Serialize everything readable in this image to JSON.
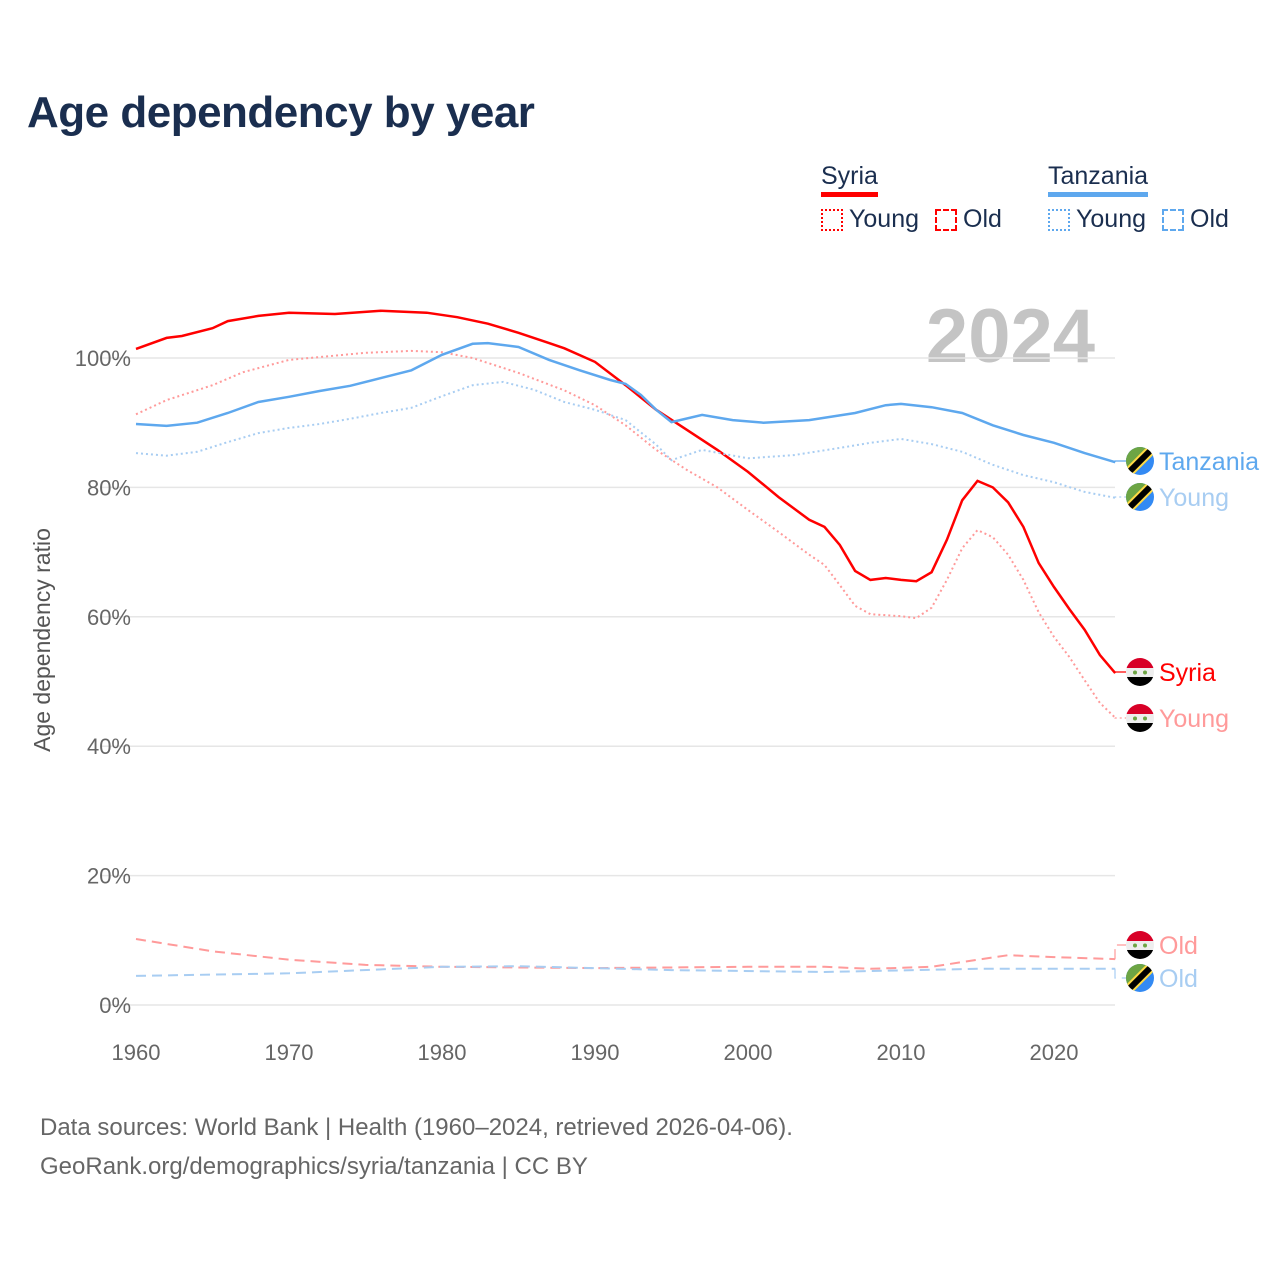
{
  "title": "Age dependency by year",
  "legend": {
    "groups": [
      {
        "name": "Syria",
        "color": "#ff0000",
        "light": "#ff9a9a",
        "young": "Young",
        "old": "Old"
      },
      {
        "name": "Tanzania",
        "color": "#5ea8ee",
        "light": "#a8cdf2",
        "young": "Young",
        "old": "Old"
      }
    ]
  },
  "year_watermark": "2024",
  "footer": {
    "line1": "Data sources: World Bank | Health (1960–2024, retrieved 2026-04-06).",
    "line2": "GeoRank.org/demographics/syria/tanzania | CC BY"
  },
  "chart_data": {
    "type": "line",
    "title": "Age dependency by year",
    "xlabel": "",
    "ylabel": "Age dependency ratio",
    "xlim": [
      1960,
      2024
    ],
    "ylim": [
      0,
      110
    ],
    "x_ticks": [
      "1960",
      "1970",
      "1980",
      "1990",
      "2000",
      "2010",
      "2020"
    ],
    "y_ticks": [
      "0%",
      "20%",
      "40%",
      "60%",
      "80%",
      "100%"
    ],
    "grid": true,
    "legend_position": "top-right",
    "series": [
      {
        "name": "Syria",
        "end_label": "Syria",
        "style": "solid",
        "color": "#ff0000",
        "x": [
          1960,
          1962,
          1963,
          1965,
          1966,
          1968,
          1970,
          1973,
          1976,
          1979,
          1981,
          1983,
          1985,
          1987,
          1988,
          1990,
          1992,
          1994,
          1996,
          1998,
          2000,
          2002,
          2004,
          2005,
          2006,
          2007,
          2008,
          2009,
          2010,
          2011,
          2012,
          2013,
          2014,
          2015,
          2016,
          2017,
          2018,
          2019,
          2020,
          2021,
          2022,
          2023,
          2024
        ],
        "values": [
          101.4,
          103.1,
          103.4,
          104.6,
          105.7,
          106.5,
          107,
          106.8,
          107.3,
          107,
          106.3,
          105.3,
          103.9,
          102.3,
          101.5,
          99.4,
          95.8,
          92,
          88.9,
          85.8,
          82.4,
          78.5,
          75,
          73.9,
          71.1,
          67.1,
          65.7,
          66,
          65.7,
          65.5,
          66.9,
          71.9,
          78,
          81,
          80,
          77.7,
          73.9,
          68.3,
          64.6,
          61.2,
          58,
          54.1,
          51.3
        ]
      },
      {
        "name": "Syria Young",
        "end_label": "Young",
        "style": "dotted",
        "color": "#ff9a9a",
        "x": [
          1960,
          1962,
          1965,
          1967,
          1970,
          1975,
          1978,
          1980,
          1982,
          1985,
          1988,
          1990,
          1992,
          1994,
          1996,
          1998,
          2000,
          2002,
          2004,
          2005,
          2006,
          2007,
          2008,
          2010,
          2011,
          2012,
          2013,
          2014,
          2015,
          2016,
          2017,
          2018,
          2019,
          2020,
          2021,
          2022,
          2023,
          2024
        ],
        "values": [
          91.3,
          93.5,
          95.8,
          97.8,
          99.7,
          100.8,
          101.1,
          100.9,
          100,
          97.7,
          95,
          92.7,
          89.6,
          85.8,
          82.7,
          80,
          76.5,
          73.1,
          69.6,
          68,
          64.9,
          61.7,
          60.4,
          60.1,
          59.8,
          61.4,
          65.7,
          70.6,
          73.4,
          72.3,
          69.6,
          65.7,
          60.7,
          56.9,
          53.8,
          50.2,
          46.7,
          44.4
        ]
      },
      {
        "name": "Syria Old",
        "end_label": "Old",
        "style": "dashed",
        "color": "#ff9a9a",
        "x": [
          1960,
          1965,
          1970,
          1975,
          1980,
          1990,
          2000,
          2005,
          2008,
          2012,
          2015,
          2017,
          2020,
          2024
        ],
        "values": [
          10.2,
          8.3,
          7,
          6.2,
          5.9,
          5.7,
          5.9,
          5.9,
          5.6,
          5.9,
          7,
          7.7,
          7.4,
          7.1
        ]
      },
      {
        "name": "Tanzania",
        "end_label": "Tanzania",
        "style": "solid",
        "color": "#5ea8ee",
        "x": [
          1960,
          1962,
          1964,
          1966,
          1968,
          1970,
          1972,
          1974,
          1976,
          1978,
          1980,
          1982,
          1983,
          1985,
          1987,
          1989,
          1991,
          1992,
          1993,
          1994,
          1995,
          1997,
          1999,
          2001,
          2004,
          2007,
          2009,
          2010,
          2012,
          2014,
          2016,
          2018,
          2020,
          2022,
          2024
        ],
        "values": [
          89.8,
          89.5,
          90,
          91.5,
          93.2,
          94,
          94.9,
          95.7,
          96.9,
          98.1,
          100.5,
          102.2,
          102.3,
          101.7,
          99.7,
          98.1,
          96.6,
          96,
          94.3,
          92,
          90.1,
          91.2,
          90.4,
          90,
          90.4,
          91.5,
          92.7,
          92.9,
          92.4,
          91.5,
          89.6,
          88.1,
          86.9,
          85.3,
          83.9
        ]
      },
      {
        "name": "Tanzania Young",
        "end_label": "Young",
        "style": "dotted",
        "color": "#a8cdf2",
        "x": [
          1960,
          1962,
          1964,
          1966,
          1968,
          1970,
          1972,
          1974,
          1976,
          1978,
          1980,
          1982,
          1984,
          1986,
          1988,
          1990,
          1992,
          1994,
          1995,
          1997,
          2000,
          2003,
          2006,
          2008,
          2010,
          2012,
          2014,
          2016,
          2018,
          2020,
          2022,
          2024
        ],
        "values": [
          85.3,
          84.9,
          85.5,
          87,
          88.4,
          89.2,
          89.8,
          90.6,
          91.5,
          92.3,
          94.1,
          95.8,
          96.3,
          95.1,
          93.2,
          92,
          90.4,
          86.6,
          84.2,
          85.8,
          84.5,
          85,
          86.1,
          86.9,
          87.5,
          86.7,
          85.5,
          83.5,
          81.9,
          80.8,
          79.3,
          78.4
        ]
      },
      {
        "name": "Tanzania Old",
        "end_label": "Old",
        "style": "dashed",
        "color": "#a8cdf2",
        "x": [
          1960,
          1970,
          1980,
          1985,
          1995,
          2005,
          2015,
          2024
        ],
        "values": [
          4.5,
          4.9,
          5.9,
          6,
          5.4,
          5.1,
          5.6,
          5.6
        ]
      }
    ]
  }
}
